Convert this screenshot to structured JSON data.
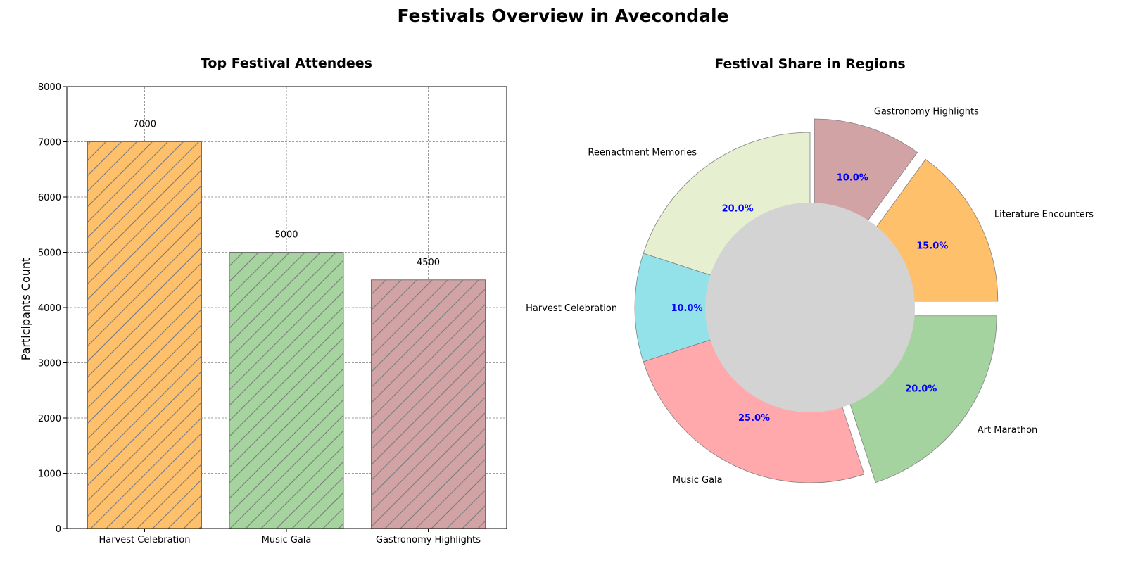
{
  "figure_title": "Festivals Overview in Avecondale",
  "chart_data": [
    {
      "type": "bar",
      "title": "Top Festival Attendees",
      "xlabel": "",
      "ylabel": "Participants Count",
      "categories": [
        "Harvest Celebration",
        "Music Gala",
        "Gastronomy Highlights"
      ],
      "values": [
        7000,
        5000,
        4500
      ],
      "data_labels": [
        "7000",
        "5000",
        "4500"
      ],
      "colors": [
        "#ffc06b",
        "#a5d49f",
        "#d1a3a4"
      ],
      "hatch": "diagonal",
      "hatch_color": "#808080",
      "ylim": [
        0,
        8000
      ],
      "yticks": [
        0,
        1000,
        2000,
        3000,
        4000,
        5000,
        6000,
        7000,
        8000
      ],
      "grid": true
    },
    {
      "type": "pie",
      "title": "Festival Share in Regions",
      "donut": true,
      "center_color": "#d3d3d3",
      "pct_label_color": "#0000ff",
      "slices": [
        {
          "label": "Literature Encounters",
          "value": 15.0,
          "pct_label": "15.0%",
          "color": "#ffc06b",
          "exploded": true
        },
        {
          "label": "Gastronomy Highlights",
          "value": 10.0,
          "pct_label": "10.0%",
          "color": "#d1a3a4",
          "exploded": true
        },
        {
          "label": "Reenactment Memories",
          "value": 20.0,
          "pct_label": "20.0%",
          "color": "#e6efcf",
          "exploded": false
        },
        {
          "label": "Harvest Celebration",
          "value": 10.0,
          "pct_label": "10.0%",
          "color": "#93e2e9",
          "exploded": false
        },
        {
          "label": "Music Gala",
          "value": 25.0,
          "pct_label": "25.0%",
          "color": "#ffa9ac",
          "exploded": false
        },
        {
          "label": "Art Marathon",
          "value": 20.0,
          "pct_label": "20.0%",
          "color": "#a5d39f",
          "exploded": true
        }
      ]
    }
  ]
}
